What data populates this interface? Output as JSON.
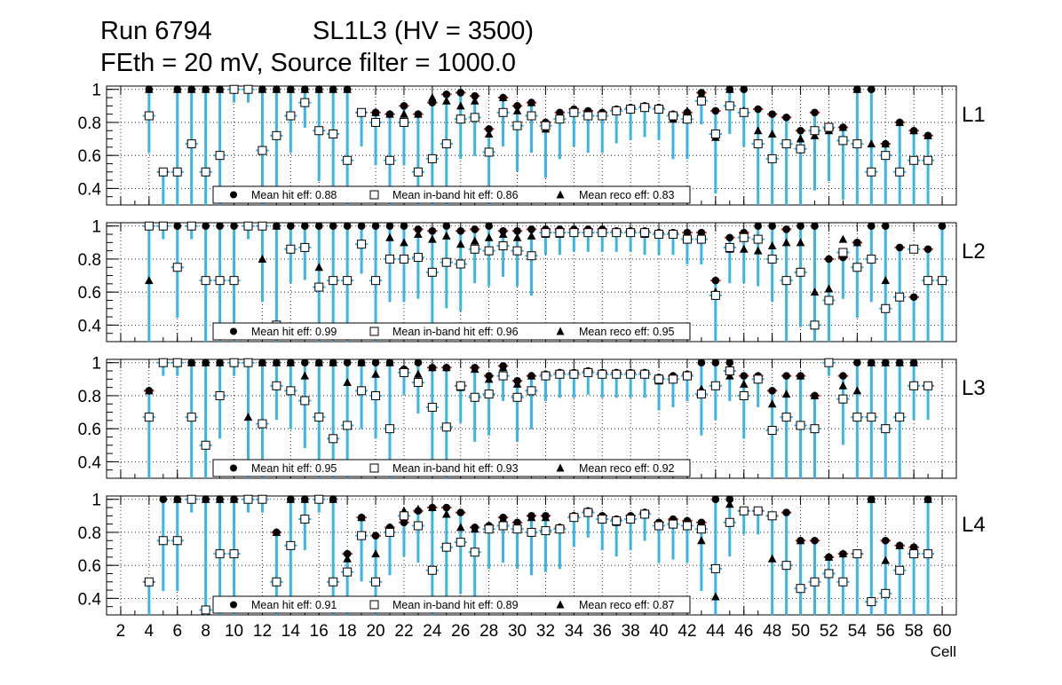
{
  "chart_data": {
    "type": "scatter",
    "title_line1_left": "Run 6794",
    "title_line1_right": "SL1L3 (HV = 3500)",
    "title_line2": "FEth = 20 mV, Source filter = 1000.0",
    "xlabel": "Cell",
    "xlim": [
      1,
      61
    ],
    "ylim": [
      0.3,
      1.02
    ],
    "x_ticks": [
      "2",
      "4",
      "6",
      "8",
      "10",
      "12",
      "14",
      "16",
      "18",
      "20",
      "22",
      "24",
      "26",
      "28",
      "30",
      "32",
      "34",
      "36",
      "38",
      "40",
      "42",
      "44",
      "46",
      "48",
      "50",
      "52",
      "54",
      "56",
      "58",
      "60"
    ],
    "y_ticks": [
      "1",
      "0.8",
      "0.6",
      "0.4"
    ],
    "grid": true,
    "series_names": [
      "hit eff",
      "in-band hit eff",
      "reco eff"
    ],
    "panels": [
      {
        "name": "L1",
        "legend": [
          "Mean hit  eff: 0.88",
          "Mean in-band hit eff: 0.86",
          "Mean reco eff: 0.83"
        ],
        "cells": [
          4,
          5,
          6,
          7,
          8,
          9,
          10,
          11,
          12,
          13,
          14,
          15,
          16,
          17,
          18,
          19,
          20,
          21,
          22,
          23,
          24,
          25,
          26,
          27,
          28,
          29,
          30,
          31,
          32,
          33,
          34,
          35,
          36,
          37,
          38,
          39,
          40,
          41,
          42,
          43,
          44,
          45,
          46,
          47,
          48,
          49,
          50,
          51,
          52,
          53,
          54,
          55,
          56,
          57,
          58,
          59
        ],
        "hit": [
          1,
          0.5,
          1,
          1,
          1,
          1,
          1,
          1,
          1,
          1,
          1,
          1,
          1,
          1,
          1,
          0.86,
          0.86,
          0.85,
          0.9,
          0.85,
          0.92,
          0.97,
          0.98,
          0.96,
          0.76,
          0.95,
          0.9,
          0.92,
          0.8,
          0.86,
          0.88,
          0.87,
          0.86,
          0.88,
          0.89,
          0.9,
          0.89,
          0.85,
          0.86,
          0.98,
          0.87,
          1,
          1,
          0.88,
          0.85,
          0.83,
          0.75,
          0.86,
          0.76,
          0.77,
          1,
          1,
          0.67,
          0.8,
          0.75,
          0.72
        ],
        "inband": [
          0.84,
          0.5,
          0.5,
          0.67,
          0.5,
          0.6,
          1,
          1,
          0.63,
          0.72,
          0.84,
          0.92,
          0.75,
          0.73,
          0.57,
          0.86,
          0.8,
          0.57,
          0.8,
          0.5,
          0.58,
          0.67,
          0.82,
          0.83,
          0.62,
          0.86,
          0.78,
          0.84,
          0.78,
          0.82,
          0.86,
          0.84,
          0.84,
          0.87,
          0.88,
          0.89,
          0.88,
          0.84,
          0.82,
          0.93,
          0.73,
          0.9,
          0.86,
          0.67,
          0.58,
          0.67,
          0.64,
          0.75,
          0.77,
          0.69,
          0.67,
          0.5,
          0.6,
          0.5,
          0.57,
          0.57
        ],
        "reco": [
          1,
          0.5,
          1,
          1,
          1,
          1,
          1,
          1,
          1,
          1,
          1,
          1,
          1,
          1,
          1,
          0.86,
          0.86,
          0.85,
          0.85,
          0.85,
          0.95,
          0.93,
          0.9,
          0.93,
          0.73,
          0.95,
          0.87,
          0.92,
          0.76,
          0.85,
          0.87,
          0.86,
          0.85,
          0.87,
          0.88,
          0.89,
          0.88,
          0.82,
          0.87,
          0.97,
          0.71,
          1,
          0.87,
          0.75,
          0.73,
          0.67,
          0.7,
          0.72,
          0.75,
          0.77,
          1,
          0.67,
          0.67,
          0.8,
          0.75,
          0.72
        ]
      },
      {
        "name": "L2",
        "legend": [
          "Mean hit  eff: 0.99",
          "Mean in-band hit eff: 0.96",
          "Mean reco eff: 0.95"
        ],
        "cells": [
          4,
          5,
          6,
          7,
          8,
          9,
          10,
          11,
          12,
          13,
          14,
          15,
          16,
          17,
          18,
          19,
          20,
          21,
          22,
          23,
          24,
          25,
          26,
          27,
          28,
          29,
          30,
          31,
          32,
          33,
          34,
          35,
          36,
          37,
          38,
          39,
          40,
          41,
          42,
          43,
          44,
          45,
          46,
          47,
          48,
          49,
          50,
          51,
          52,
          53,
          54,
          55,
          56,
          57,
          58,
          59,
          60
        ],
        "hit": [
          1,
          1,
          1,
          1,
          1,
          1,
          1,
          1,
          1,
          1,
          1,
          1,
          1,
          1,
          1,
          1,
          1,
          1,
          1,
          0.98,
          0.97,
          1,
          0.97,
          0.98,
          1,
          0.97,
          0.97,
          0.98,
          0.98,
          0.98,
          0.98,
          0.98,
          0.98,
          0.97,
          0.97,
          0.97,
          0.96,
          0.96,
          0.96,
          0.96,
          0.67,
          0.93,
          0.96,
          1,
          1,
          0.98,
          1,
          1,
          0.8,
          0.81,
          0.9,
          1,
          1,
          0.87,
          0.57,
          0.86,
          1
        ],
        "inband": [
          1,
          1,
          0.75,
          1,
          0.67,
          0.67,
          0.67,
          1,
          1,
          0.4,
          0.86,
          0.87,
          0.63,
          0.67,
          0.67,
          0.89,
          0.67,
          0.8,
          0.8,
          0.81,
          0.72,
          0.78,
          0.77,
          0.86,
          0.85,
          0.88,
          0.85,
          0.82,
          0.96,
          0.96,
          0.96,
          0.96,
          0.96,
          0.96,
          0.96,
          0.96,
          0.95,
          0.95,
          0.92,
          0.92,
          0.58,
          0.87,
          0.93,
          0.92,
          0.8,
          0.67,
          0.72,
          0.4,
          0.55,
          0.84,
          0.75,
          0.8,
          0.5,
          0.57,
          0.86,
          0.67,
          0.67
        ],
        "reco": [
          0.67,
          1,
          0.75,
          1,
          0.67,
          0.67,
          0.67,
          1,
          0.8,
          1,
          0.86,
          0.87,
          0.75,
          0.67,
          0.67,
          0.89,
          0.67,
          0.93,
          0.9,
          0.95,
          0.92,
          0.94,
          0.89,
          0.91,
          0.93,
          0.95,
          0.93,
          0.94,
          0.95,
          0.95,
          0.96,
          0.96,
          0.96,
          0.96,
          0.96,
          0.95,
          0.95,
          0.95,
          0.93,
          0.93,
          0.6,
          0.86,
          0.86,
          0.85,
          0.88,
          0.9,
          0.9,
          0.6,
          0.62,
          0.92,
          0.9,
          0.8,
          0.67,
          0.57,
          0.86,
          0.67,
          0.67
        ]
      },
      {
        "name": "L3",
        "legend": [
          "Mean hit  eff: 0.95",
          "Mean in-band hit eff: 0.93",
          "Mean reco eff: 0.92"
        ],
        "cells": [
          4,
          5,
          6,
          7,
          8,
          9,
          10,
          11,
          12,
          13,
          14,
          15,
          16,
          17,
          18,
          19,
          20,
          21,
          22,
          23,
          24,
          25,
          26,
          27,
          28,
          29,
          30,
          31,
          32,
          33,
          34,
          35,
          36,
          37,
          38,
          39,
          40,
          41,
          42,
          43,
          44,
          45,
          46,
          47,
          48,
          49,
          50,
          51,
          52,
          53,
          54,
          55,
          56,
          57,
          58,
          59
        ],
        "hit": [
          0.83,
          1,
          1,
          1,
          1,
          1,
          1,
          1,
          1,
          1,
          1,
          1,
          1,
          1,
          1,
          1,
          1,
          1,
          0.96,
          1,
          0.97,
          0.97,
          0.86,
          0.97,
          0.92,
          0.98,
          0.89,
          0.92,
          0.93,
          0.94,
          0.94,
          0.95,
          0.94,
          0.94,
          0.94,
          0.94,
          0.91,
          0.92,
          0.93,
          1,
          1,
          1,
          0.92,
          0.92,
          0.83,
          0.92,
          0.92,
          0.8,
          1,
          0.92,
          1,
          1,
          1,
          1,
          1,
          0.86
        ],
        "inband": [
          0.67,
          1,
          1,
          0.67,
          0.5,
          0.8,
          1,
          1,
          0.63,
          0.86,
          0.83,
          0.77,
          0.67,
          0.54,
          0.62,
          0.83,
          0.8,
          0.6,
          0.94,
          0.88,
          0.73,
          0.61,
          0.86,
          0.79,
          0.81,
          0.92,
          0.79,
          0.83,
          0.92,
          0.93,
          0.93,
          0.94,
          0.93,
          0.93,
          0.93,
          0.93,
          0.9,
          0.9,
          0.92,
          0.81,
          0.86,
          0.95,
          0.8,
          0.9,
          0.59,
          0.67,
          0.62,
          0.6,
          1,
          0.78,
          0.67,
          0.67,
          0.6,
          0.67,
          0.86,
          0.86
        ],
        "reco": [
          0.83,
          1,
          1,
          1,
          1,
          1,
          1,
          0.67,
          1,
          1,
          1,
          0.92,
          1,
          1,
          0.88,
          1,
          0.93,
          1,
          0.95,
          0.93,
          0.97,
          0.97,
          0.85,
          0.96,
          0.9,
          0.97,
          0.87,
          0.92,
          0.92,
          0.93,
          0.94,
          0.94,
          0.93,
          0.93,
          0.93,
          0.93,
          0.89,
          0.91,
          0.92,
          0.84,
          0.86,
          0.92,
          0.87,
          0.9,
          0.75,
          0.81,
          0.92,
          0.8,
          1,
          0.86,
          0.83,
          1,
          1,
          1,
          1,
          0.86
        ]
      },
      {
        "name": "L4",
        "legend": [
          "Mean hit  eff: 0.91",
          "Mean in-band hit eff: 0.89",
          "Mean reco eff: 0.87"
        ],
        "cells": [
          4,
          5,
          6,
          7,
          8,
          9,
          10,
          11,
          12,
          13,
          14,
          15,
          16,
          17,
          18,
          19,
          20,
          21,
          22,
          23,
          24,
          25,
          26,
          27,
          28,
          29,
          30,
          31,
          32,
          33,
          34,
          35,
          36,
          37,
          38,
          39,
          40,
          41,
          42,
          43,
          44,
          45,
          46,
          47,
          48,
          49,
          50,
          51,
          52,
          53,
          54,
          55,
          56,
          57,
          58,
          59
        ],
        "hit": [
          0.5,
          1,
          1,
          1,
          1,
          1,
          1,
          1,
          1,
          0.8,
          1,
          1,
          1,
          1,
          0.67,
          0.89,
          0.78,
          0.83,
          0.86,
          0.93,
          0.95,
          0.95,
          0.92,
          0.83,
          0.84,
          0.89,
          0.86,
          0.9,
          0.9,
          0.83,
          0.9,
          0.93,
          0.9,
          0.88,
          0.9,
          0.92,
          0.86,
          0.88,
          0.87,
          0.86,
          1,
          1,
          0.93,
          0.93,
          0.9,
          0.92,
          0.75,
          0.75,
          0.65,
          0.67,
          0.67,
          1,
          0.75,
          0.72,
          0.71,
          1
        ],
        "inband": [
          0.5,
          0.75,
          0.75,
          1,
          0.33,
          0.67,
          0.67,
          1,
          1,
          0.5,
          0.72,
          0.88,
          1,
          0.5,
          0.56,
          0.78,
          0.5,
          0.8,
          0.9,
          0.84,
          0.57,
          0.71,
          0.74,
          0.68,
          0.82,
          0.84,
          0.82,
          0.8,
          0.81,
          0.82,
          0.89,
          0.92,
          0.88,
          0.87,
          0.88,
          0.91,
          0.84,
          0.85,
          0.84,
          0.82,
          0.58,
          0.86,
          0.93,
          0.93,
          0.9,
          0.6,
          0.46,
          0.5,
          0.55,
          0.5,
          0.67,
          0.38,
          0.43,
          0.57,
          0.67,
          0.67
        ],
        "reco": [
          0.5,
          0.75,
          1,
          1,
          1,
          1,
          1,
          1,
          1,
          0.8,
          1,
          1,
          1,
          1,
          0.64,
          0.89,
          0.67,
          0.83,
          0.93,
          0.94,
          0.95,
          0.91,
          0.83,
          0.82,
          0.84,
          0.88,
          0.85,
          0.89,
          0.89,
          0.82,
          0.9,
          0.92,
          0.89,
          0.86,
          0.89,
          0.92,
          0.85,
          0.87,
          0.87,
          0.75,
          0.41,
          0.97,
          0.93,
          0.93,
          0.64,
          0.6,
          0.75,
          0.5,
          0.65,
          0.67,
          0.67,
          1,
          0.63,
          0.72,
          0.71,
          1
        ]
      }
    ]
  }
}
